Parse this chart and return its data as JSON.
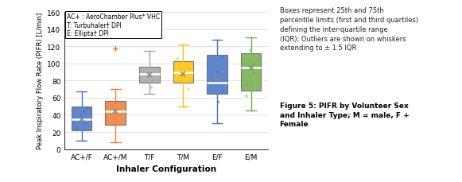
{
  "categories": [
    "AC+/F",
    "AC+/M",
    "T/F",
    "T/M",
    "E/F",
    "E/M"
  ],
  "colors": [
    "#4472C4",
    "#ED7D31",
    "#A5A5A5",
    "#FFC000",
    "#4472C4",
    "#70AD47"
  ],
  "box_stats": [
    {
      "med": 35,
      "q1": 22,
      "q3": 50,
      "whislo": 10,
      "whishi": 67,
      "fliers": []
    },
    {
      "med": 44,
      "q1": 28,
      "q3": 56,
      "whislo": 8,
      "whishi": 70,
      "fliers": [
        117
      ]
    },
    {
      "med": 88,
      "q1": 78,
      "q3": 96,
      "whislo": 65,
      "whishi": 115,
      "fliers": []
    },
    {
      "med": 90,
      "q1": 78,
      "q3": 103,
      "whislo": 50,
      "whishi": 122,
      "fliers": []
    },
    {
      "med": 78,
      "q1": 65,
      "q3": 110,
      "whislo": 30,
      "whishi": 128,
      "fliers": []
    },
    {
      "med": 95,
      "q1": 68,
      "q3": 112,
      "whislo": 45,
      "whishi": 130,
      "fliers": []
    }
  ],
  "mean_markers": [
    35,
    44,
    87,
    88,
    82,
    95
  ],
  "scatter_points": [
    [
      25,
      30,
      38,
      44,
      48
    ],
    [
      28,
      35,
      43,
      50,
      54
    ],
    [
      72,
      78,
      85,
      90,
      95
    ],
    [
      70,
      80,
      88,
      95,
      105
    ],
    [
      55,
      68,
      78,
      90,
      108
    ],
    [
      62,
      75,
      88,
      100,
      115
    ]
  ],
  "ylabel": "Peak Inspiratory Flow Rate (PIFR) [L/min]",
  "xlabel": "Inhaler Configuration",
  "ylim": [
    0,
    160
  ],
  "yticks": [
    0,
    20,
    40,
    60,
    80,
    100,
    120,
    140,
    160
  ],
  "legend_text": [
    "AC+ : AeroChamber Plus* VHC",
    "T: Turbuhaler† DPI",
    "E: Ellipta† DPI"
  ],
  "annotation_text": "Boxes represent 25th and 75th\npercentile limits (first and third quartiles)\ndefining the inter-quartile range\n(IQR); Outliers are shown on whiskers\nextending to ± 1.5 IQR",
  "figure_caption": "Figure 5: PIFR by Volunteer Sex\nand Inhaler Type; M = male, F +\nFemale",
  "grid_color": "#DDDDDD",
  "flier_color": "#FF6600"
}
